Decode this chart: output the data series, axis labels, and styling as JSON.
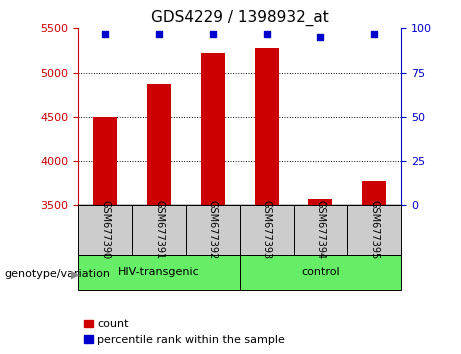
{
  "title": "GDS4229 / 1398932_at",
  "samples": [
    "GSM677390",
    "GSM677391",
    "GSM677392",
    "GSM677393",
    "GSM677394",
    "GSM677395"
  ],
  "counts": [
    4500,
    4875,
    5225,
    5275,
    3575,
    3775
  ],
  "percentile_ranks": [
    97,
    97,
    97,
    97,
    95,
    97
  ],
  "ylim_left": [
    3500,
    5500
  ],
  "yticks_left": [
    3500,
    4000,
    4500,
    5000,
    5500
  ],
  "ylim_right": [
    0,
    100
  ],
  "yticks_right": [
    0,
    25,
    50,
    75,
    100
  ],
  "bar_color": "#cc0000",
  "dot_color": "#0000cc",
  "group1_label": "HIV-transgenic",
  "group2_label": "control",
  "group1_indices": [
    0,
    1,
    2
  ],
  "group2_indices": [
    3,
    4,
    5
  ],
  "group_color": "#66ee66",
  "sample_box_color": "#cccccc",
  "xlabel_left": "genotype/variation",
  "legend_count": "count",
  "legend_percentile": "percentile rank within the sample",
  "bar_width": 0.45,
  "title_fontsize": 11,
  "tick_fontsize": 8,
  "label_fontsize": 8,
  "sample_fontsize": 7,
  "group_fontsize": 8,
  "grid_ticks": [
    4000,
    4500,
    5000
  ]
}
